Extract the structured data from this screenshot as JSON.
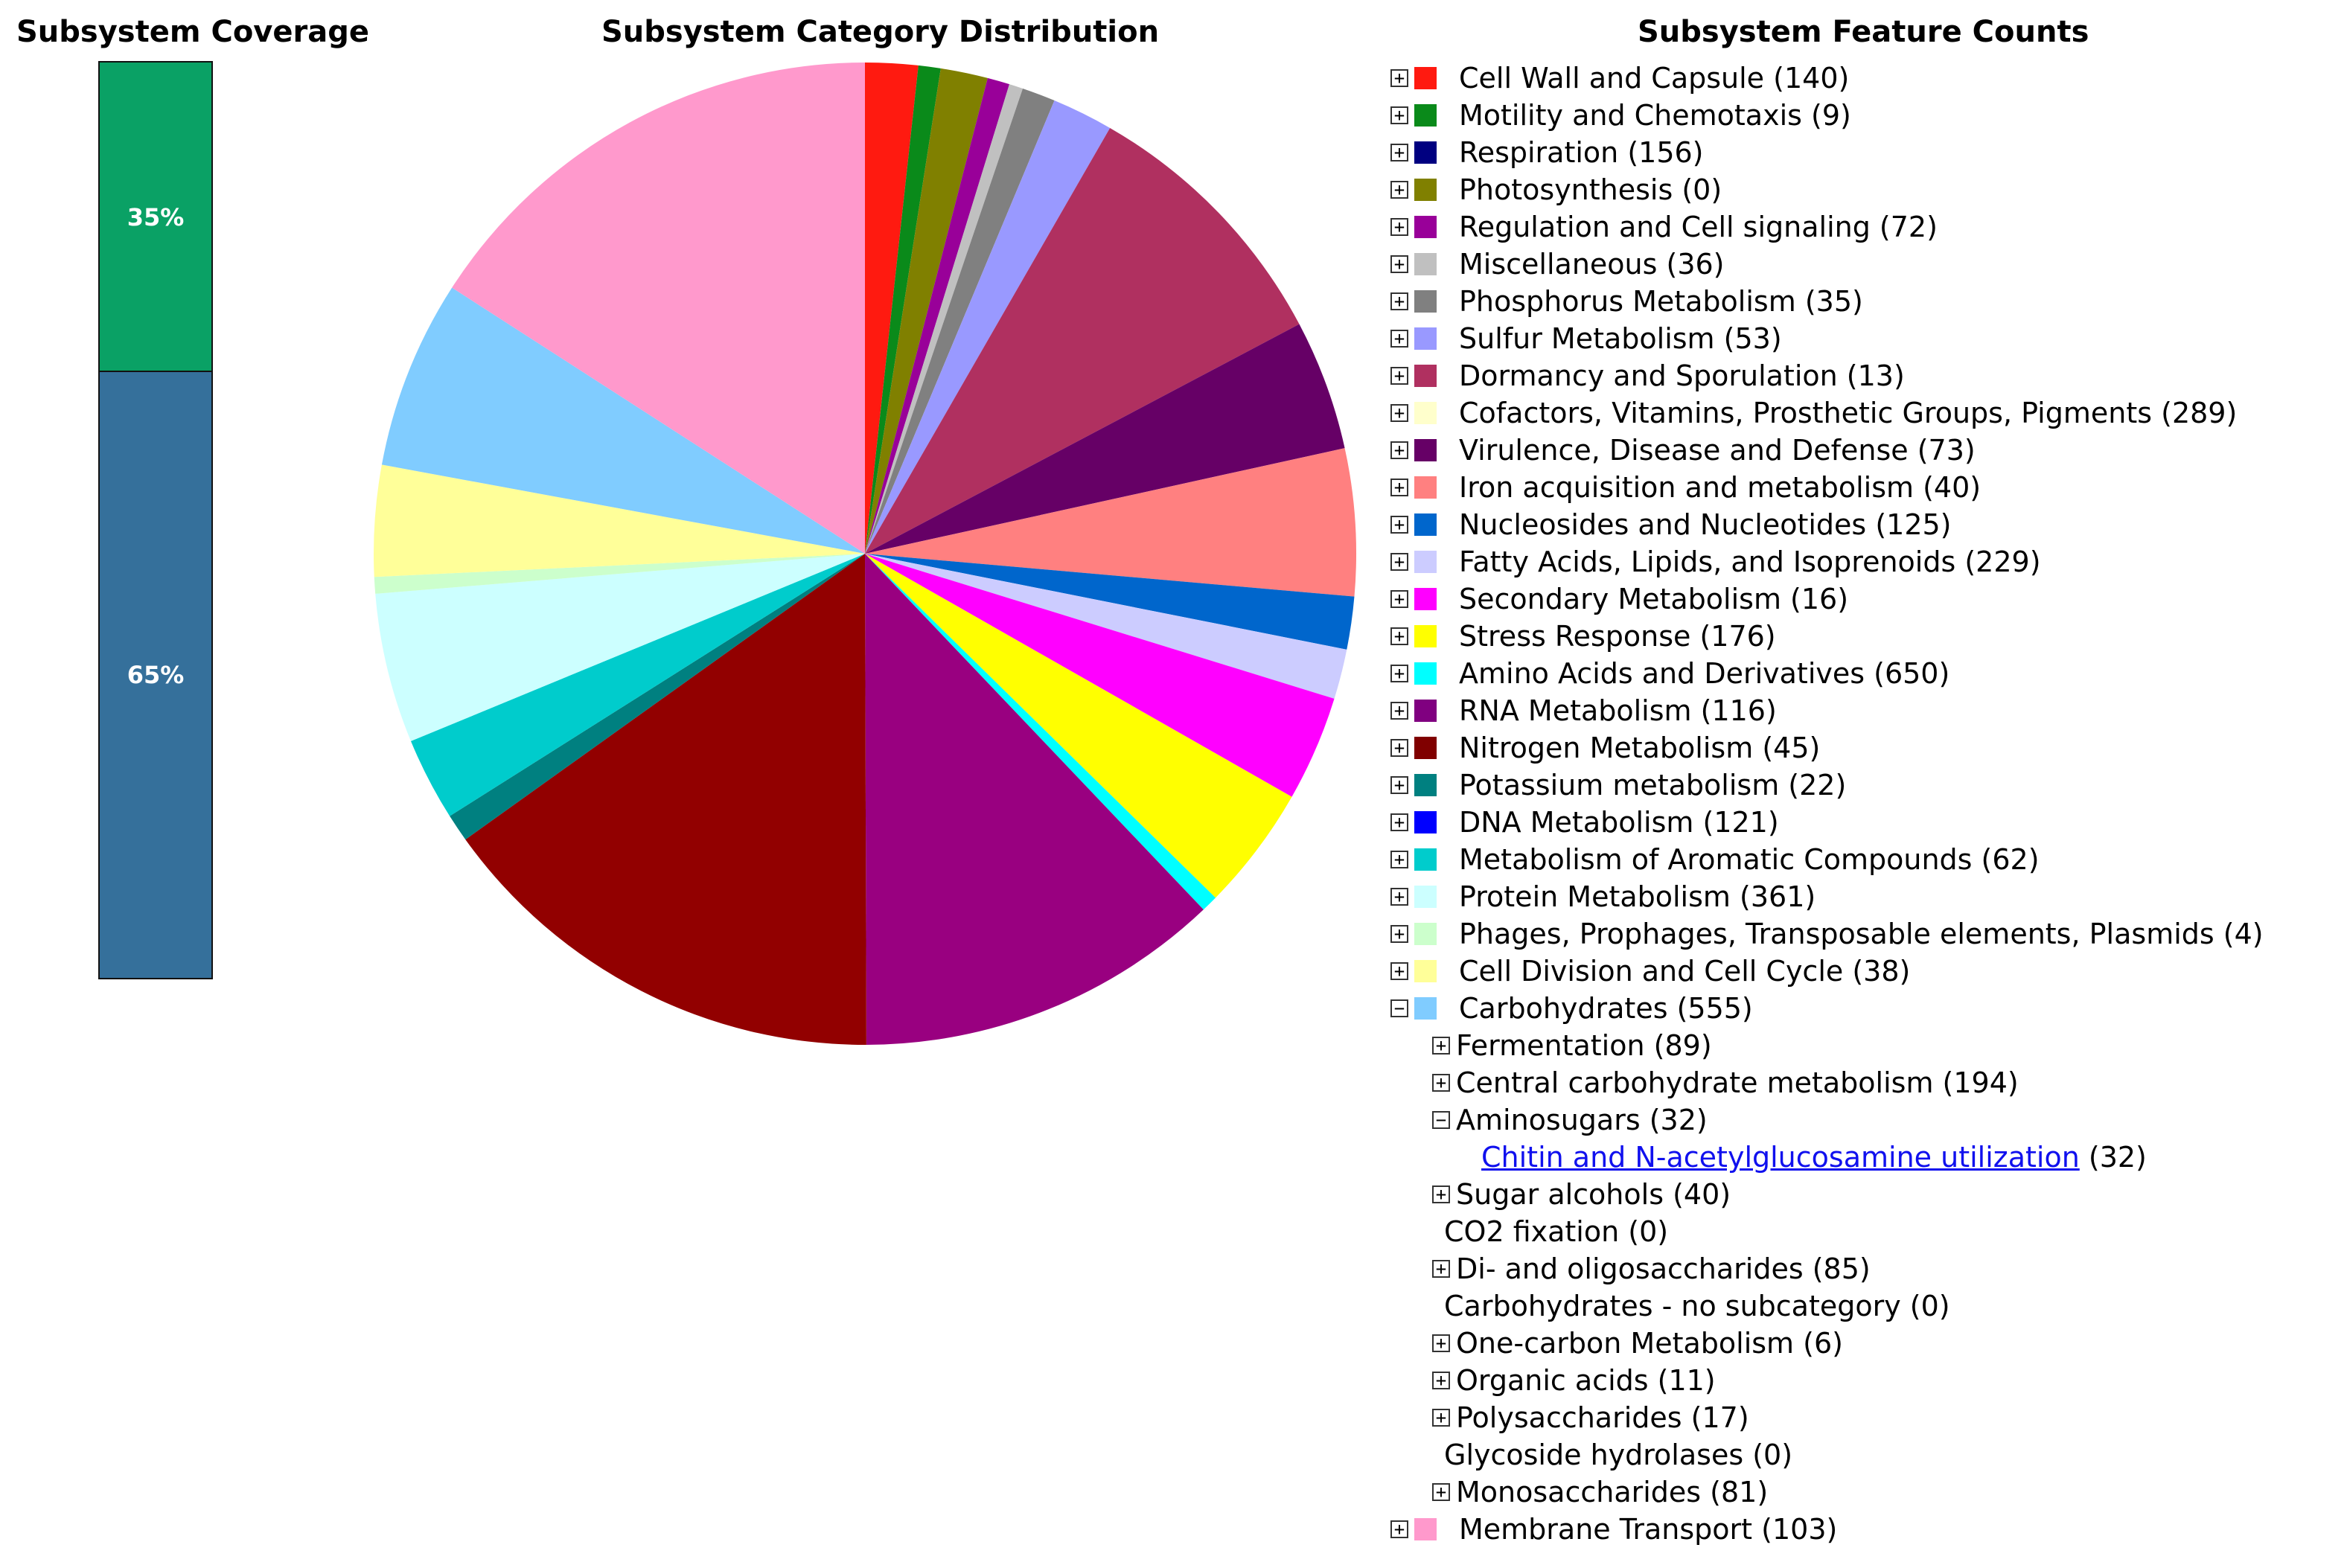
{
  "titles": {
    "coverage": "Subsystem Coverage",
    "distribution": "Subsystem Category Distribution",
    "counts": "Subsystem Feature Counts"
  },
  "coverage": {
    "segments": [
      {
        "label": "35%",
        "value": 35,
        "color": "#0aa165"
      },
      {
        "label": "65%",
        "value": 65,
        "color": "#35709b"
      }
    ]
  },
  "chart_data": {
    "type": "pie",
    "title": "Subsystem Category Distribution",
    "start_angle_deg": 0,
    "direction": "clockwise",
    "slices": [
      {
        "name": "Cell Wall and Capsule",
        "value": 140,
        "color": "#ff1a10"
      },
      {
        "name": "Motility and Chemotaxis",
        "value": 9,
        "color": "#0a8a1a"
      },
      {
        "name": "Respiration",
        "value": 156,
        "color": "#000080"
      },
      {
        "name": "Photosynthesis",
        "value": 0,
        "color": "#808000"
      },
      {
        "name": "Regulation and Cell signaling",
        "value": 72,
        "color": "#990099"
      },
      {
        "name": "Miscellaneous",
        "value": 36,
        "color": "#c0c0c0"
      },
      {
        "name": "Phosphorus Metabolism",
        "value": 35,
        "color": "#808080"
      },
      {
        "name": "Sulfur Metabolism",
        "value": 53,
        "color": "#9999ff"
      },
      {
        "name": "Dormancy and Sporulation",
        "value": 13,
        "color": "#b03060"
      },
      {
        "name": "Cofactors, Vitamins, Prosthetic Groups, Pigments",
        "value": 289,
        "color": "#ffffcc"
      },
      {
        "name": "Virulence, Disease and Defense",
        "value": 73,
        "color": "#660066"
      },
      {
        "name": "Iron acquisition and metabolism",
        "value": 40,
        "color": "#ff8080"
      },
      {
        "name": "Nucleosides and Nucleotides",
        "value": 125,
        "color": "#0066cc"
      },
      {
        "name": "Fatty Acids, Lipids, and Isoprenoids",
        "value": 229,
        "color": "#ccccff"
      },
      {
        "name": "Secondary Metabolism",
        "value": 16,
        "color": "#ff00ff"
      },
      {
        "name": "Stress Response",
        "value": 176,
        "color": "#ffff00"
      },
      {
        "name": "Amino Acids and Derivatives",
        "value": 650,
        "color": "#00ffff"
      },
      {
        "name": "RNA Metabolism",
        "value": 116,
        "color": "#800080"
      },
      {
        "name": "Nitrogen Metabolism",
        "value": 45,
        "color": "#800000"
      },
      {
        "name": "Potassium metabolism",
        "value": 22,
        "color": "#008080"
      },
      {
        "name": "DNA Metabolism",
        "value": 121,
        "color": "#0000ff"
      },
      {
        "name": "Metabolism of Aromatic Compounds",
        "value": 62,
        "color": "#00cccc"
      },
      {
        "name": "Protein Metabolism",
        "value": 361,
        "color": "#ccffff"
      },
      {
        "name": "Phages, Prophages, Transposable elements, Plasmids",
        "value": 4,
        "color": "#ccffcc"
      },
      {
        "name": "Cell Division and Cell Cycle",
        "value": 38,
        "color": "#ffff99"
      },
      {
        "name": "Carbohydrates",
        "value": 555,
        "color": "#80ccff"
      },
      {
        "name": "Membrane Transport",
        "value": 103,
        "color": "#ff99cc"
      }
    ],
    "pie_drawn_slices": [
      {
        "value": 1.9,
        "color": "#ff1a10"
      },
      {
        "value": 0.8,
        "color": "#0a8a1a"
      },
      {
        "value": 1.7,
        "color": "#808000"
      },
      {
        "value": 0.8,
        "color": "#990099"
      },
      {
        "value": 0.5,
        "color": "#c0c0c0"
      },
      {
        "value": 1.2,
        "color": "#808080"
      },
      {
        "value": 2.2,
        "color": "#9999ff"
      },
      {
        "value": 9.8,
        "color": "#b03060"
      },
      {
        "value": 4.7,
        "color": "#660066"
      },
      {
        "value": 5.3,
        "color": "#ff8080"
      },
      {
        "value": 1.9,
        "color": "#0066cc"
      },
      {
        "value": 1.8,
        "color": "#ccccff"
      },
      {
        "value": 3.8,
        "color": "#ff00ff"
      },
      {
        "value": 4.5,
        "color": "#ffff00"
      },
      {
        "value": 0.6,
        "color": "#00ffff"
      },
      {
        "value": 13.2,
        "color": "#990080"
      },
      {
        "value": 16.6,
        "color": "#920000"
      },
      {
        "value": 1.0,
        "color": "#008080"
      },
      {
        "value": 3.0,
        "color": "#00cccc"
      },
      {
        "value": 5.4,
        "color": "#ccffff"
      },
      {
        "value": 0.6,
        "color": "#ccffcc"
      },
      {
        "value": 4.0,
        "color": "#ffff99"
      },
      {
        "value": 6.8,
        "color": "#80ccff"
      },
      {
        "value": 17.4,
        "color": "#ff99cc"
      }
    ]
  },
  "tree": {
    "rows": [
      {
        "level": 1,
        "exp": "+",
        "color": "#ff1a10",
        "label": "Cell Wall and Capsule (140)"
      },
      {
        "level": 1,
        "exp": "+",
        "color": "#0a8a1a",
        "label": "Motility and Chemotaxis (9)"
      },
      {
        "level": 1,
        "exp": "+",
        "color": "#000080",
        "label": "Respiration (156)"
      },
      {
        "level": 1,
        "exp": "+",
        "color": "#808000",
        "label": "Photosynthesis (0)"
      },
      {
        "level": 1,
        "exp": "+",
        "color": "#990099",
        "label": "Regulation and Cell signaling (72)"
      },
      {
        "level": 1,
        "exp": "+",
        "color": "#c0c0c0",
        "label": "Miscellaneous (36)"
      },
      {
        "level": 1,
        "exp": "+",
        "color": "#808080",
        "label": "Phosphorus Metabolism (35)"
      },
      {
        "level": 1,
        "exp": "+",
        "color": "#9999ff",
        "label": "Sulfur Metabolism (53)"
      },
      {
        "level": 1,
        "exp": "+",
        "color": "#b03060",
        "label": "Dormancy and Sporulation (13)"
      },
      {
        "level": 1,
        "exp": "+",
        "color": "#ffffcc",
        "label": "Cofactors, Vitamins, Prosthetic Groups, Pigments (289)"
      },
      {
        "level": 1,
        "exp": "+",
        "color": "#660066",
        "label": "Virulence, Disease and Defense (73)"
      },
      {
        "level": 1,
        "exp": "+",
        "color": "#ff8080",
        "label": "Iron acquisition and metabolism (40)"
      },
      {
        "level": 1,
        "exp": "+",
        "color": "#0066cc",
        "label": "Nucleosides and Nucleotides (125)"
      },
      {
        "level": 1,
        "exp": "+",
        "color": "#ccccff",
        "label": "Fatty Acids, Lipids, and Isoprenoids (229)"
      },
      {
        "level": 1,
        "exp": "+",
        "color": "#ff00ff",
        "label": "Secondary Metabolism (16)"
      },
      {
        "level": 1,
        "exp": "+",
        "color": "#ffff00",
        "label": "Stress Response (176)"
      },
      {
        "level": 1,
        "exp": "+",
        "color": "#00ffff",
        "label": "Amino Acids and Derivatives (650)"
      },
      {
        "level": 1,
        "exp": "+",
        "color": "#800080",
        "label": "RNA Metabolism (116)"
      },
      {
        "level": 1,
        "exp": "+",
        "color": "#800000",
        "label": "Nitrogen Metabolism (45)"
      },
      {
        "level": 1,
        "exp": "+",
        "color": "#008080",
        "label": "Potassium metabolism (22)"
      },
      {
        "level": 1,
        "exp": "+",
        "color": "#0000ff",
        "label": "DNA Metabolism (121)"
      },
      {
        "level": 1,
        "exp": "+",
        "color": "#00cccc",
        "label": "Metabolism of Aromatic Compounds (62)"
      },
      {
        "level": 1,
        "exp": "+",
        "color": "#ccffff",
        "label": "Protein Metabolism (361)"
      },
      {
        "level": 1,
        "exp": "+",
        "color": "#ccffcc",
        "label": "Phages, Prophages, Transposable elements, Plasmids (4)"
      },
      {
        "level": 1,
        "exp": "+",
        "color": "#ffff99",
        "label": "Cell Division and Cell Cycle (38)"
      },
      {
        "level": 1,
        "exp": "-",
        "color": "#80ccff",
        "label": "Carbohydrates (555)"
      },
      {
        "level": 2,
        "exp": "+",
        "label": "Fermentation (89)"
      },
      {
        "level": 2,
        "exp": "+",
        "label": "Central carbohydrate metabolism (194)"
      },
      {
        "level": 2,
        "exp": "-",
        "label": "Aminosugars (32)"
      },
      {
        "level": 3,
        "link": "Chitin and N-acetylglucosamine utilization",
        "label": " (32)"
      },
      {
        "level": 2,
        "exp": "+",
        "label": "Sugar alcohols (40)"
      },
      {
        "level": 2,
        "exp": "",
        "label": "CO2 fixation (0)"
      },
      {
        "level": 2,
        "exp": "+",
        "label": "Di- and oligosaccharides (85)"
      },
      {
        "level": 2,
        "exp": "",
        "label": "Carbohydrates - no subcategory (0)"
      },
      {
        "level": 2,
        "exp": "+",
        "label": "One-carbon Metabolism (6)"
      },
      {
        "level": 2,
        "exp": "+",
        "label": "Organic acids (11)"
      },
      {
        "level": 2,
        "exp": "+",
        "label": "Polysaccharides (17)"
      },
      {
        "level": 2,
        "exp": "",
        "label": "Glycoside hydrolases (0)"
      },
      {
        "level": 2,
        "exp": "+",
        "label": "Monosaccharides (81)"
      },
      {
        "level": 1,
        "exp": "+",
        "color": "#ff99cc",
        "label": "Membrane Transport (103)"
      }
    ]
  }
}
